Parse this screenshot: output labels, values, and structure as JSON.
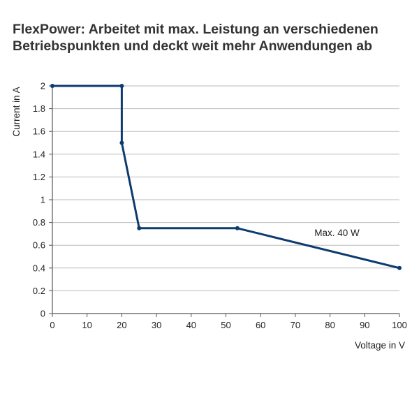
{
  "chart_data": {
    "type": "line",
    "title_lines": [
      "FlexPower: Arbeitet mit max. Leistung an verschiedenen",
      "Betriebspunkten und deckt weit mehr Anwendungen ab"
    ],
    "xlabel": "Voltage in V",
    "ylabel": "Current in A",
    "xlim": [
      0,
      100
    ],
    "ylim": [
      0,
      2
    ],
    "x_ticks": [
      0,
      10,
      20,
      30,
      40,
      50,
      60,
      70,
      80,
      90,
      100
    ],
    "y_ticks": [
      0,
      0.2,
      0.4,
      0.6,
      0.8,
      1,
      1.2,
      1.4,
      1.6,
      1.8,
      2
    ],
    "x_tick_labels": [
      "0",
      "10",
      "20",
      "30",
      "40",
      "50",
      "60",
      "70",
      "80",
      "90",
      "100"
    ],
    "y_tick_labels": [
      "0",
      "0.2",
      "0.4",
      "0.6",
      "0.8",
      "1",
      "1.2",
      "1.4",
      "1.6",
      "1.8",
      "2"
    ],
    "grid": "horizontal",
    "series": [
      {
        "color": "#0d3b70",
        "points": [
          {
            "x": 0,
            "y": 2
          },
          {
            "x": 20,
            "y": 2
          },
          {
            "x": 20,
            "y": 1.5
          },
          {
            "x": 25,
            "y": 0.75
          },
          {
            "x": 53.3,
            "y": 0.75
          },
          {
            "x": 100,
            "y": 0.4
          }
        ]
      }
    ],
    "annotations": [
      {
        "text": "Max. 40 W",
        "x": 82,
        "y": 0.68
      }
    ],
    "colors": {
      "line": "#0d3b70",
      "grid": "#bbbbbb",
      "axis": "#555555",
      "text": "#222222",
      "title": "#333333"
    }
  }
}
